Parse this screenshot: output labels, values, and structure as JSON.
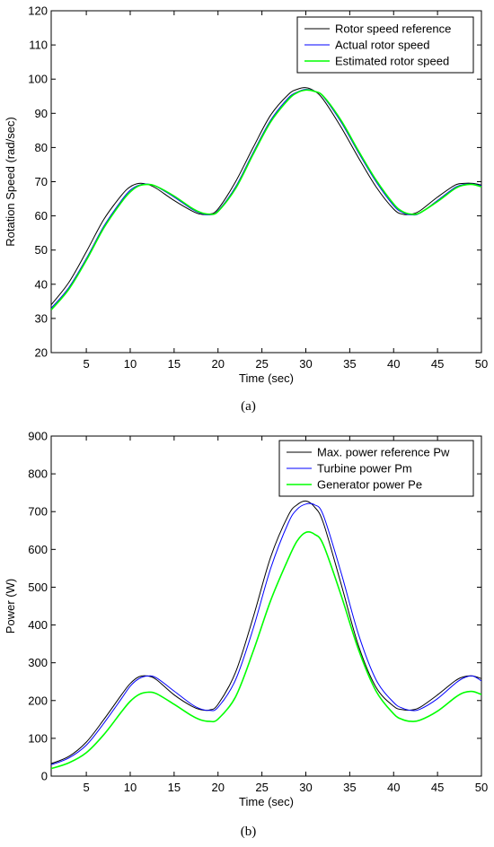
{
  "chart_data": [
    {
      "type": "line",
      "xlabel": "Time (sec)",
      "ylabel": "Rotation Speed (rad/sec)",
      "xlim": [
        1,
        50
      ],
      "ylim": [
        20,
        120
      ],
      "xticks": [
        5,
        10,
        15,
        20,
        25,
        30,
        35,
        40,
        45,
        50
      ],
      "yticks": [
        20,
        30,
        40,
        50,
        60,
        70,
        80,
        90,
        100,
        110,
        120
      ],
      "legend_position": "top-right",
      "caption": "(a)",
      "series": [
        {
          "name": "Rotor speed reference",
          "color": "#000000",
          "x": [
            1,
            3,
            5,
            7,
            9,
            10,
            11,
            12,
            13,
            15,
            17,
            18,
            19,
            20,
            22,
            24,
            26,
            28,
            29,
            30,
            31,
            32,
            34,
            36,
            38,
            40,
            41,
            42,
            43,
            45,
            47,
            48,
            49,
            50
          ],
          "y": [
            34,
            40.5,
            49.5,
            59,
            66,
            68.5,
            69.5,
            69.2,
            68,
            64.5,
            61.5,
            60.5,
            60.5,
            62,
            70,
            80,
            89.5,
            95.5,
            97,
            97.5,
            96.5,
            94,
            86,
            77,
            68.5,
            62,
            60.5,
            60.5,
            61.5,
            65.5,
            69,
            69.5,
            69.5,
            69
          ]
        },
        {
          "name": "Actual rotor speed",
          "color": "#0000ff",
          "x": [
            1,
            3,
            5,
            7,
            9,
            10,
            11,
            12,
            13,
            15,
            17,
            18,
            19,
            20,
            22,
            24,
            26,
            28,
            29,
            30,
            31,
            32,
            34,
            36,
            38,
            40,
            41,
            42,
            43,
            45,
            47,
            48,
            49,
            50
          ],
          "y": [
            33,
            39,
            47.5,
            57,
            64.5,
            67.5,
            69,
            69.3,
            68.5,
            65.5,
            62,
            60.8,
            60.3,
            61.5,
            68.5,
            78.5,
            88,
            94.5,
            96.2,
            97,
            96.5,
            94.8,
            87.5,
            78.5,
            70,
            63,
            61,
            60.3,
            60.8,
            64.5,
            68.3,
            69.2,
            69.3,
            68.8
          ]
        },
        {
          "name": "Estimated rotor speed",
          "color": "#00ff00",
          "x": [
            1,
            3,
            5,
            7,
            9,
            10,
            11,
            12,
            13,
            15,
            17,
            18,
            19,
            20,
            22,
            24,
            26,
            28,
            29,
            30,
            31,
            32,
            34,
            36,
            38,
            40,
            41,
            42,
            43,
            45,
            47,
            48,
            49,
            50
          ],
          "y": [
            32.5,
            38.5,
            47,
            56.5,
            64,
            67,
            68.8,
            69.2,
            68.6,
            65.8,
            62.3,
            61,
            60.5,
            61.3,
            68,
            78,
            87.5,
            94,
            96,
            96.8,
            96.4,
            95,
            88,
            79,
            70.5,
            63.5,
            61.3,
            60.5,
            60.9,
            64.2,
            68,
            69,
            69.2,
            68.5
          ]
        }
      ]
    },
    {
      "type": "line",
      "xlabel": "Time (sec)",
      "ylabel": "Power (W)",
      "xlim": [
        1,
        50
      ],
      "ylim": [
        0,
        900
      ],
      "xticks": [
        5,
        10,
        15,
        20,
        25,
        30,
        35,
        40,
        45,
        50
      ],
      "yticks": [
        0,
        100,
        200,
        300,
        400,
        500,
        600,
        700,
        800,
        900
      ],
      "legend_position": "top-right",
      "caption": "(b)",
      "series": [
        {
          "name": "Max. power reference Pw",
          "color": "#000000",
          "x": [
            1,
            3,
            5,
            7,
            9,
            10,
            11,
            12,
            13,
            15,
            17,
            18,
            19,
            20,
            22,
            24,
            26,
            28,
            29,
            30,
            31,
            32,
            34,
            36,
            38,
            40,
            41,
            42,
            43,
            45,
            47,
            48,
            49,
            50
          ],
          "y": [
            33,
            52,
            90,
            150,
            215,
            245,
            263,
            265,
            255,
            215,
            185,
            176,
            175,
            190,
            275,
            420,
            580,
            690,
            718,
            728,
            712,
            670,
            510,
            345,
            235,
            185,
            176,
            175,
            182,
            215,
            252,
            263,
            265,
            258
          ]
        },
        {
          "name": "Turbine power Pm",
          "color": "#0000ff",
          "x": [
            1,
            3,
            5,
            7,
            9,
            10,
            11,
            12,
            13,
            15,
            17,
            18,
            19,
            20,
            22,
            24,
            26,
            28,
            29,
            30,
            31,
            32,
            34,
            36,
            38,
            40,
            41,
            42,
            43,
            45,
            47,
            48,
            49,
            50
          ],
          "y": [
            30,
            48,
            82,
            140,
            205,
            238,
            258,
            265,
            260,
            225,
            190,
            178,
            174,
            182,
            255,
            390,
            550,
            670,
            706,
            720,
            718,
            690,
            540,
            375,
            255,
            195,
            180,
            174,
            177,
            205,
            245,
            260,
            265,
            252
          ]
        },
        {
          "name": "Generator power Pe",
          "color": "#00ff00",
          "x": [
            1,
            3,
            5,
            7,
            9,
            10,
            11,
            12,
            13,
            15,
            17,
            18,
            19,
            20,
            22,
            24,
            26,
            28,
            29,
            30,
            31,
            32,
            34,
            36,
            38,
            40,
            41,
            42,
            43,
            45,
            47,
            48,
            49,
            50
          ],
          "y": [
            20,
            35,
            62,
            110,
            170,
            198,
            216,
            222,
            218,
            190,
            160,
            149,
            145,
            151,
            210,
            330,
            465,
            575,
            622,
            645,
            640,
            612,
            480,
            335,
            225,
            165,
            150,
            145,
            148,
            172,
            208,
            221,
            224,
            216
          ]
        }
      ]
    }
  ]
}
